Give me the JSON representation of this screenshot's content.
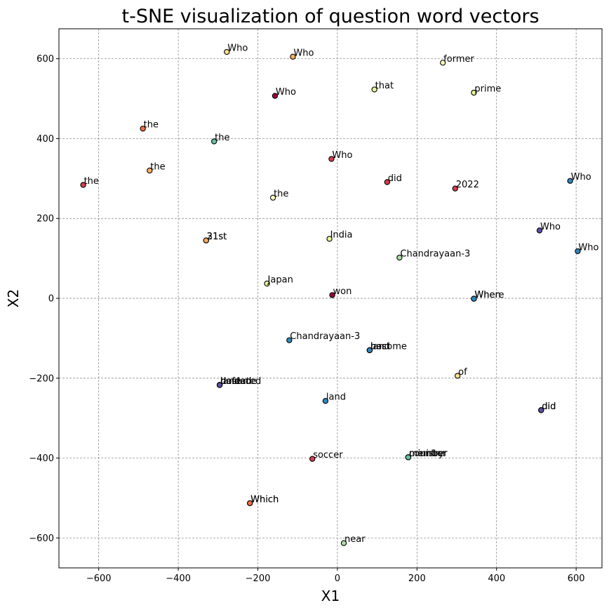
{
  "chart_data": {
    "type": "scatter",
    "title": "t-SNE visualization of question word vectors",
    "xlabel": "X1",
    "ylabel": "X2",
    "xlim": [
      -700,
      665
    ],
    "ylim": [
      -675,
      675
    ],
    "xticks": [
      -600,
      -400,
      -200,
      0,
      200,
      400,
      600
    ],
    "yticks": [
      -600,
      -400,
      -200,
      0,
      200,
      400,
      600
    ],
    "grid": true,
    "points": [
      {
        "x": -278,
        "y": 617,
        "label": "Who",
        "color": "#fee08b"
      },
      {
        "x": -112,
        "y": 605,
        "label": "Who",
        "color": "#fdae61"
      },
      {
        "x": 265,
        "y": 590,
        "label": "former",
        "color": "#ffffbf"
      },
      {
        "x": 93,
        "y": 523,
        "label": "that",
        "color": "#e6f598"
      },
      {
        "x": 343,
        "y": 515,
        "label": "prime",
        "color": "#e6f598"
      },
      {
        "x": -157,
        "y": 507,
        "label": "Who",
        "color": "#9e0142"
      },
      {
        "x": -489,
        "y": 425,
        "label": "the",
        "color": "#f46d43"
      },
      {
        "x": -310,
        "y": 393,
        "label": "the",
        "color": "#66c2a5"
      },
      {
        "x": -15,
        "y": 349,
        "label": "Who",
        "color": "#d53e4f"
      },
      {
        "x": -472,
        "y": 320,
        "label": "the",
        "color": "#fdae61"
      },
      {
        "x": -639,
        "y": 284,
        "label": "the",
        "color": "#d53e4f"
      },
      {
        "x": 125,
        "y": 291,
        "label": "did",
        "color": "#d53e4f"
      },
      {
        "x": 296,
        "y": 275,
        "label": "2022",
        "color": "#d53e4f"
      },
      {
        "x": 585,
        "y": 294,
        "label": "Who",
        "color": "#3288bd"
      },
      {
        "x": -162,
        "y": 252,
        "label": "the",
        "color": "#ffffbf"
      },
      {
        "x": -330,
        "y": 145,
        "label": "21st",
        "color": "#fee08b"
      },
      {
        "x": -330,
        "y": 145,
        "label": "31st",
        "color": "#fdae61"
      },
      {
        "x": -20,
        "y": 149,
        "label": "India",
        "color": "#e6f598"
      },
      {
        "x": 508,
        "y": 170,
        "label": "Who",
        "color": "#5e4fa2"
      },
      {
        "x": 604,
        "y": 118,
        "label": "Who",
        "color": "#3288bd"
      },
      {
        "x": 156,
        "y": 102,
        "label": "Chandrayaan-3",
        "color": "#abdda4"
      },
      {
        "x": -177,
        "y": 37,
        "label": "Japan",
        "color": "#e6f598"
      },
      {
        "x": -13,
        "y": 8,
        "label": "won",
        "color": "#9e0142"
      },
      {
        "x": 343,
        "y": -1,
        "label": "When",
        "color": "#66c2a5"
      },
      {
        "x": 343,
        "y": -1,
        "label": "Where",
        "color": "#3288bd"
      },
      {
        "x": -121,
        "y": -105,
        "label": "Chandrayaan-3",
        "color": "#3288bd"
      },
      {
        "x": 81,
        "y": -130,
        "label": "land",
        "color": "#5e4fa2"
      },
      {
        "x": 81,
        "y": -130,
        "label": "host",
        "color": "#3288bd"
      },
      {
        "x": 81,
        "y": -130,
        "label": "become",
        "color": "#3288bd"
      },
      {
        "x": 302,
        "y": -194,
        "label": "of",
        "color": "#fee08b"
      },
      {
        "x": -296,
        "y": -217,
        "label": "defeated",
        "color": "#5e4fa2"
      },
      {
        "x": -296,
        "y": -217,
        "label": "hosted",
        "color": "#3288bd"
      },
      {
        "x": -296,
        "y": -217,
        "label": "landed",
        "color": "#3288bd"
      },
      {
        "x": -296,
        "y": -217,
        "label": "became",
        "color": "#5e4fa2"
      },
      {
        "x": -30,
        "y": -257,
        "label": "land",
        "color": "#3288bd"
      },
      {
        "x": 512,
        "y": -280,
        "label": "did",
        "color": "#3288bd"
      },
      {
        "x": 512,
        "y": -280,
        "label": "did",
        "color": "#5e4fa2"
      },
      {
        "x": 178,
        "y": -398,
        "label": "minister",
        "color": "#66c2a5"
      },
      {
        "x": 178,
        "y": -398,
        "label": "member",
        "color": "#abdda4"
      },
      {
        "x": 178,
        "y": -398,
        "label": "country",
        "color": "#66c2a5"
      },
      {
        "x": -63,
        "y": -402,
        "label": "soccer",
        "color": "#d53e4f"
      },
      {
        "x": -220,
        "y": -513,
        "label": "Which",
        "color": "#fdae61"
      },
      {
        "x": -220,
        "y": -513,
        "label": "Which",
        "color": "#f46d43"
      },
      {
        "x": 16,
        "y": -613,
        "label": "near",
        "color": "#abdda4"
      }
    ]
  }
}
